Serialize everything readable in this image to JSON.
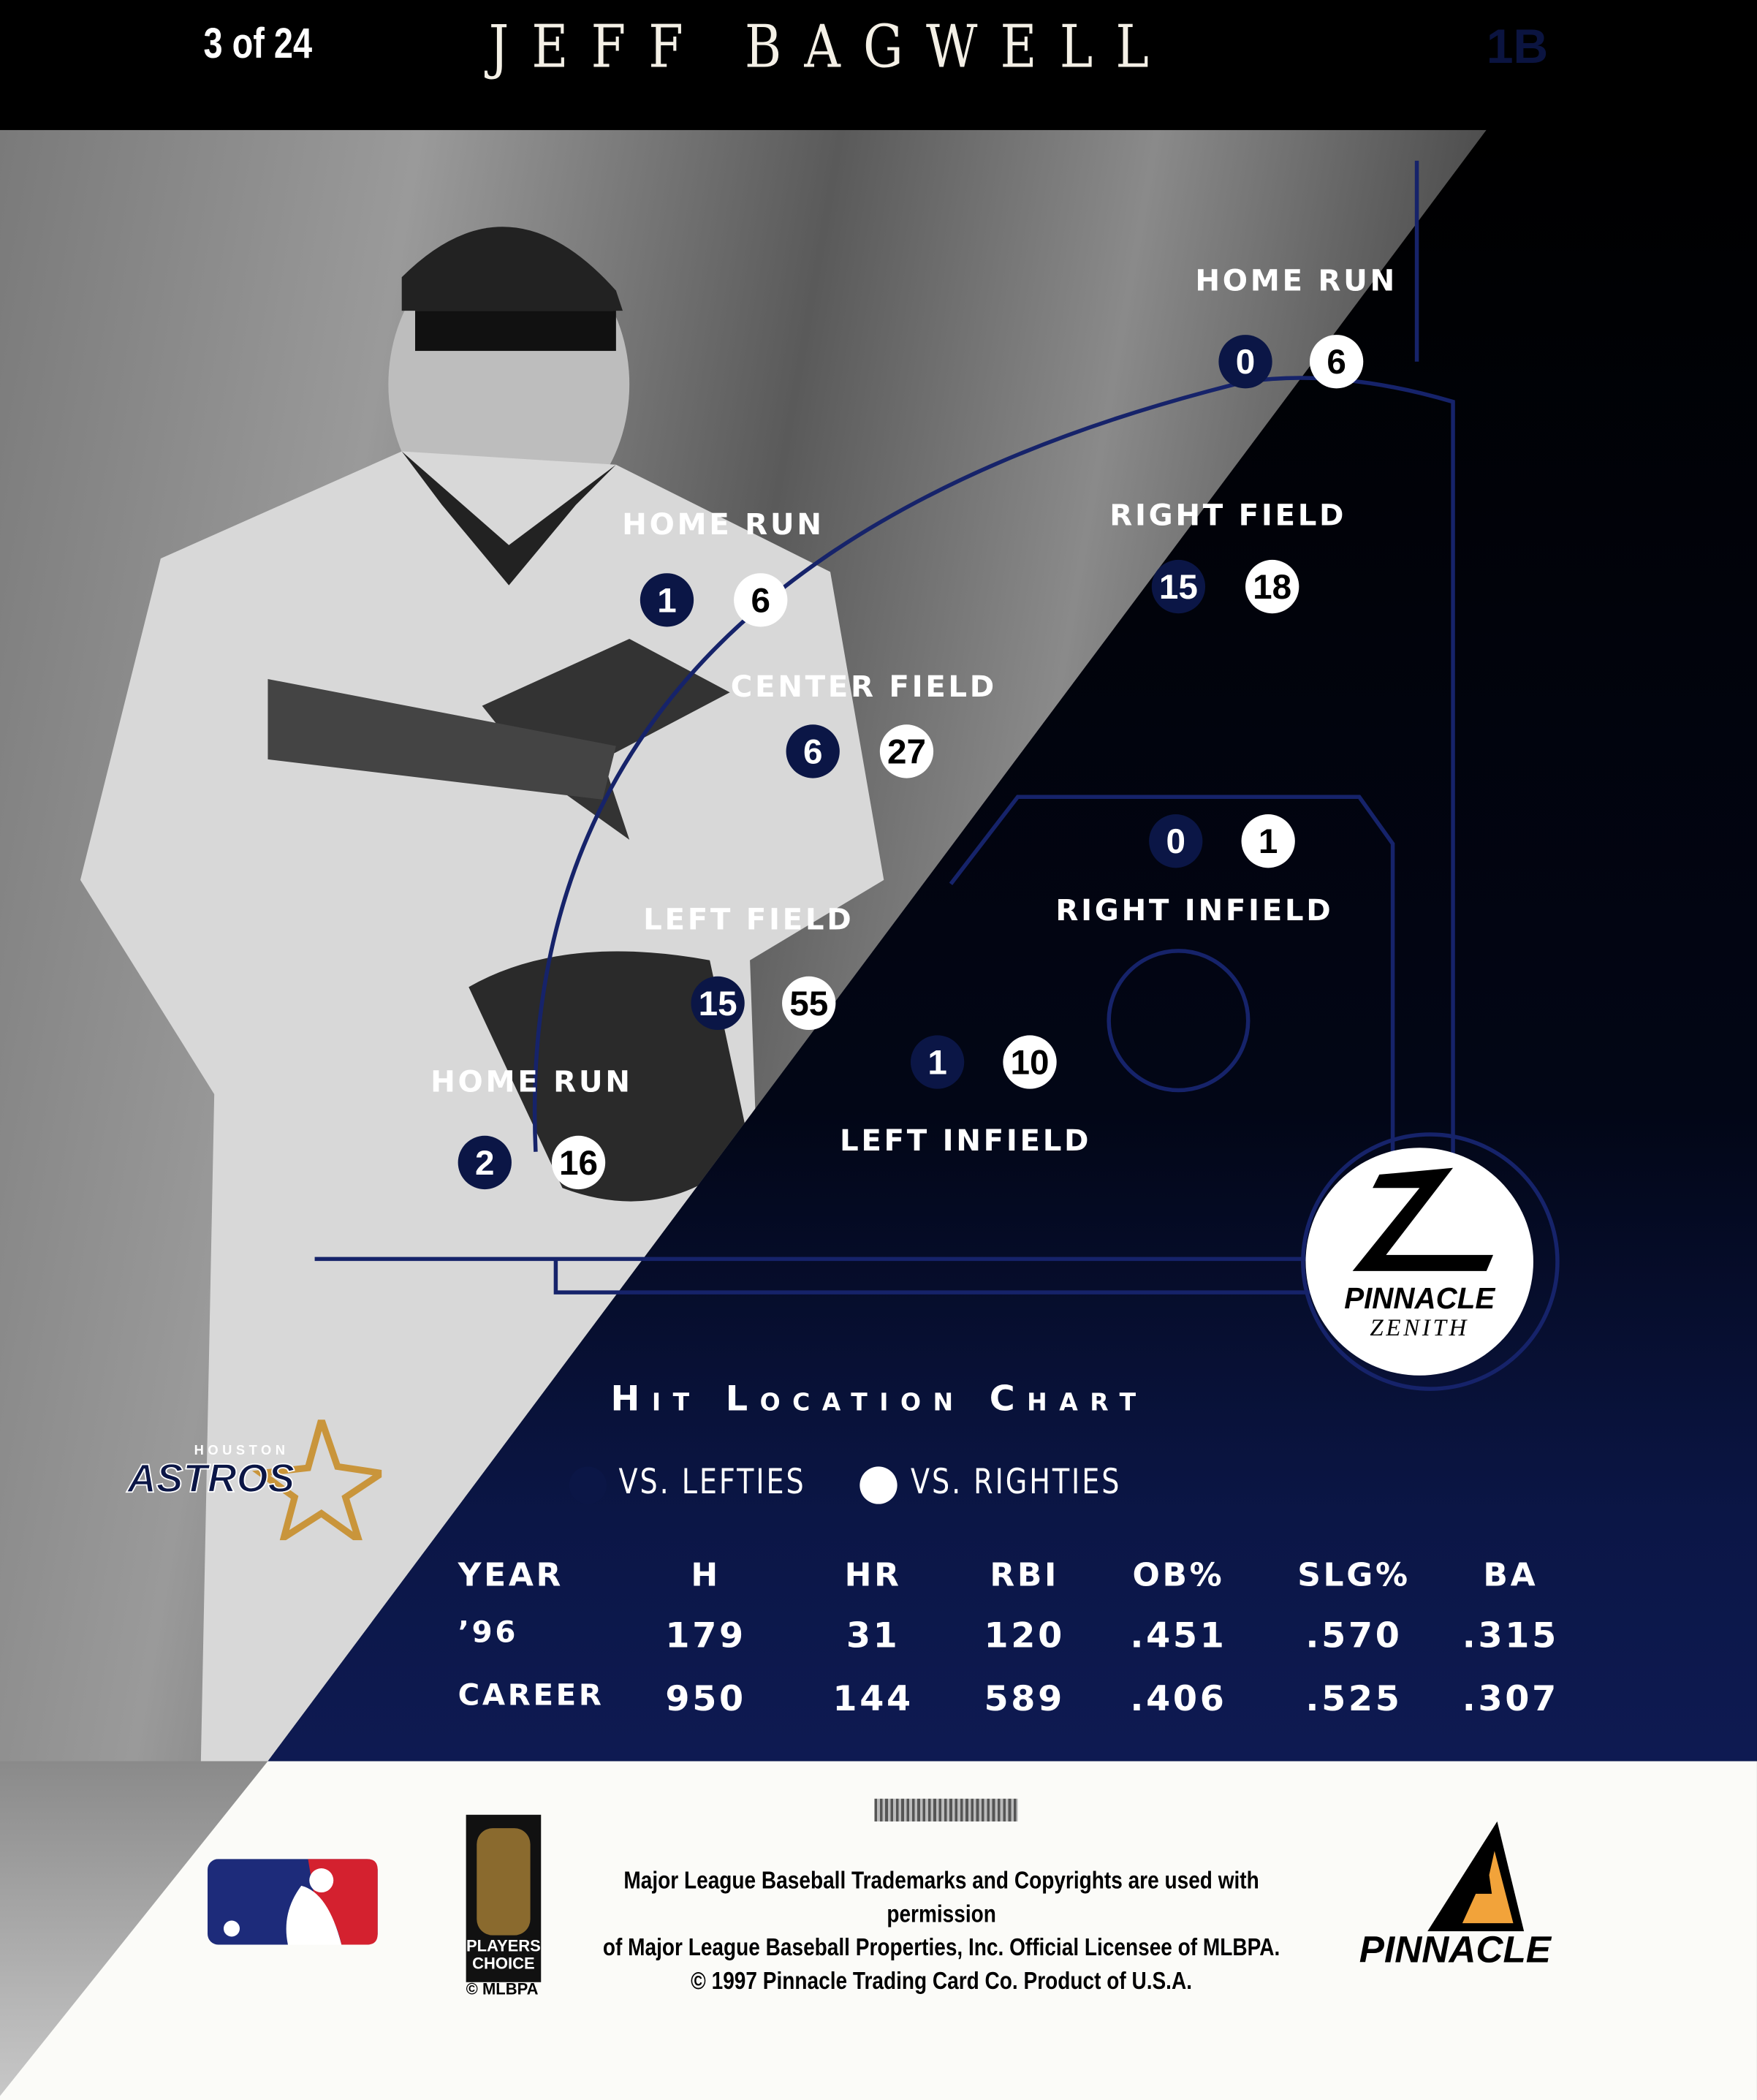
{
  "header": {
    "card_number": "3 of 24",
    "player_name": "JEFF BAGWELL",
    "position": "1B"
  },
  "chart": {
    "zones": [
      {
        "label": "HOME RUN",
        "id": "hr-right",
        "lefties": "0",
        "righties": "6"
      },
      {
        "label": "RIGHT FIELD",
        "id": "right-field",
        "lefties": "15",
        "righties": "18"
      },
      {
        "label": "HOME RUN",
        "id": "hr-center",
        "lefties": "1",
        "righties": "6"
      },
      {
        "label": "CENTER FIELD",
        "id": "center-field",
        "lefties": "6",
        "righties": "27"
      },
      {
        "label": "RIGHT INFIELD",
        "id": "right-infield",
        "lefties": "0",
        "righties": "1"
      },
      {
        "label": "LEFT FIELD",
        "id": "left-field",
        "lefties": "15",
        "righties": "55"
      },
      {
        "label": "LEFT INFIELD",
        "id": "left-infield",
        "lefties": "1",
        "righties": "10"
      },
      {
        "label": "HOME RUN",
        "id": "hr-left",
        "lefties": "2",
        "righties": "16"
      }
    ],
    "title": "Hit Location Chart",
    "legend": {
      "lefties": "VS. LEFTIES",
      "righties": "VS. RIGHTIES"
    },
    "colors": {
      "lefties": "#0b1646",
      "righties": "#ffffff"
    }
  },
  "stats": {
    "headers": [
      "YEAR",
      "H",
      "HR",
      "RBI",
      "OB%",
      "SLG%",
      "BA"
    ],
    "rows": [
      [
        "’96",
        "179",
        "31",
        "120",
        ".451",
        ".570",
        ".315"
      ],
      [
        "CAREER",
        "950",
        "144",
        "589",
        ".406",
        ".525",
        ".307"
      ]
    ]
  },
  "logos": {
    "zenith_1": "PINNACLE",
    "zenith_2": "ZENITH",
    "astros_city": "HOUSTON",
    "astros": "ASTROS",
    "players_choice": "PLAYERS CHOICE",
    "mlbpa": "© MLBPA",
    "pinnacle": "PINNACLE"
  },
  "legal": [
    "Major League Baseball Trademarks and Copyrights are used with permission",
    "of Major League Baseball Properties, Inc. Official Licensee of MLBPA.",
    "© 1997 Pinnacle Trading Card Co. Product of U.S.A."
  ]
}
